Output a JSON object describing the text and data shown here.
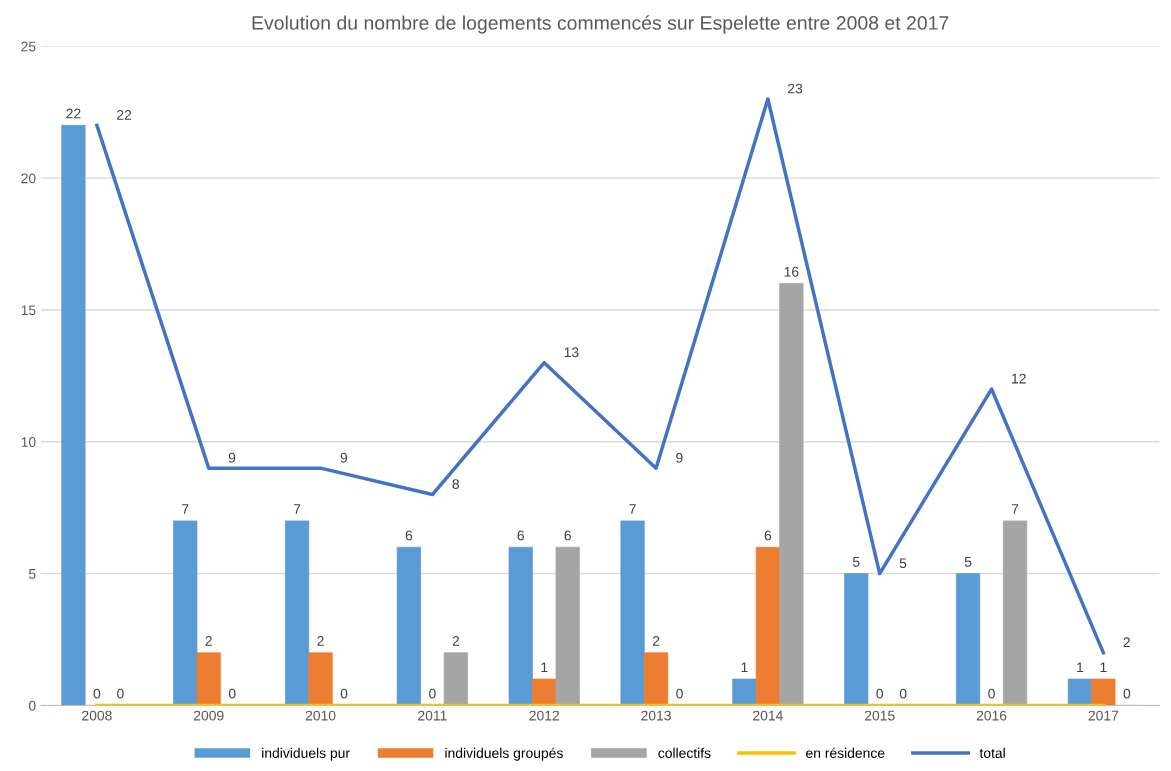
{
  "chart_data": {
    "type": "bar",
    "title": "Evolution du nombre de logements commencés sur Espelette entre 2008 et 2017",
    "categories": [
      "2008",
      "2009",
      "2010",
      "2011",
      "2012",
      "2013",
      "2014",
      "2015",
      "2016",
      "2017"
    ],
    "series": [
      {
        "name": "individuels pur",
        "color": "#5b9bd5",
        "values": [
          22,
          7,
          7,
          6,
          6,
          7,
          1,
          5,
          5,
          1
        ],
        "value_labels": [
          "22",
          "7",
          "7",
          "6",
          "6",
          "7",
          "1",
          "5",
          "5",
          "1"
        ]
      },
      {
        "name": "individuels groupés",
        "color": "#ed7d31",
        "values": [
          0,
          2,
          2,
          0,
          1,
          2,
          6,
          0,
          0,
          1
        ],
        "value_labels": [
          "0",
          "2",
          "2",
          "0",
          "1",
          "2",
          "6",
          "0",
          "0",
          "1"
        ]
      },
      {
        "name": "collectifs",
        "color": "#a5a5a5",
        "values": [
          0,
          0,
          0,
          2,
          6,
          0,
          16,
          0,
          7,
          0
        ],
        "value_labels": [
          "0",
          "0",
          "0",
          "2",
          "6",
          "0",
          "16",
          "0",
          "7",
          "0"
        ]
      },
      {
        "name": "en résidence",
        "type": "line",
        "color": "#ffc000",
        "values": [
          0,
          0,
          0,
          0,
          0,
          0,
          0,
          0,
          0,
          0
        ]
      },
      {
        "name": "total",
        "type": "line",
        "color": "#4472c4",
        "values": [
          22,
          9,
          9,
          8,
          13,
          9,
          23,
          5,
          12,
          2
        ],
        "value_labels": [
          "22",
          "9",
          "9",
          "8",
          "13",
          "9",
          "23",
          "5",
          "12",
          "2"
        ]
      }
    ],
    "ylim": [
      0,
      25
    ],
    "yticks": [
      0,
      5,
      10,
      15,
      20,
      25
    ],
    "grid": "y",
    "legend": "bottom",
    "marker": "none",
    "line_style": "solid"
  }
}
